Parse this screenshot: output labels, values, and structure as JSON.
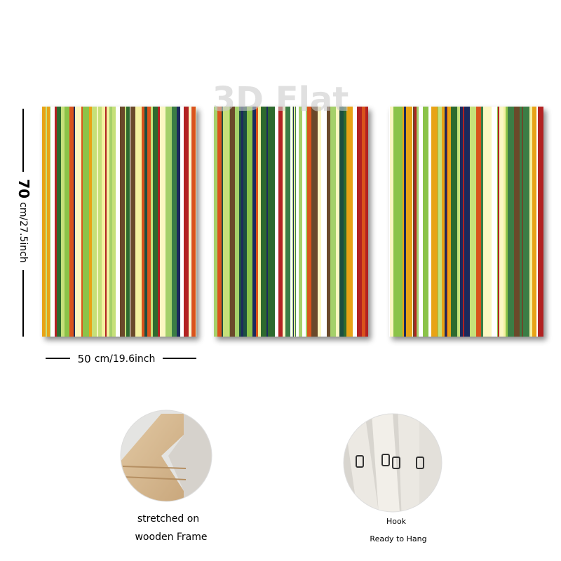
{
  "watermark": "3D Flat",
  "dimensions": {
    "height_number": "70",
    "height_unit": "cm/27.5inch",
    "width_number": "50",
    "width_unit": "cm/19.6inch"
  },
  "features": [
    {
      "lines": [
        "stretched on",
        "wooden Frame"
      ]
    },
    {
      "lines": [
        "Hook",
        "Ready to Hang"
      ]
    }
  ]
}
